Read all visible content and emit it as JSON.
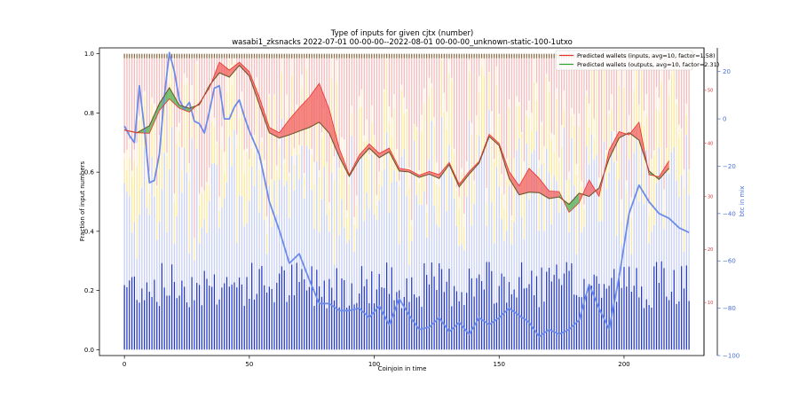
{
  "chart_data": {
    "type": "line",
    "title": "Type of inputs for given cjtx (number)",
    "subtitle": "wasabi1_zksnacks 2022-07-01 00-00-00--2022-08-01 00-00-00_unknown-static-100-1utxo",
    "xlabel": "Coinjoin in time",
    "ylabel": "Fraction of input numbers",
    "y2label": "btc in mix",
    "xlim": [
      -10,
      232
    ],
    "ylim": [
      -0.02,
      1.02
    ],
    "y2lim": [
      -100,
      30
    ],
    "y3lim": [
      0,
      58
    ],
    "x_ticks": [
      0,
      50,
      100,
      150,
      200
    ],
    "y_ticks": [
      0.0,
      0.2,
      0.4,
      0.6,
      0.8,
      1.0
    ],
    "y2_ticks": [
      -100,
      -80,
      -60,
      -40,
      -20,
      0,
      20
    ],
    "y3_ticks": [
      10,
      20,
      30,
      40,
      50
    ],
    "x_tick_labels": [
      "0",
      "50",
      "100",
      "150",
      "200"
    ],
    "y_tick_labels": [
      "0.0",
      "0.2",
      "0.4",
      "0.6",
      "0.8",
      "1.0"
    ],
    "y2_tick_labels": [
      "−100",
      "−80",
      "−60",
      "−40",
      "−20",
      "0",
      "20"
    ],
    "y3_tick_labels": [
      "10",
      "20",
      "30",
      "40",
      "50"
    ],
    "legend_position": "top-right",
    "grid": false,
    "n_coinjoins": 227,
    "colors": {
      "inputs_line": "#e8332a",
      "outputs_line": "#2ca02c",
      "blue_line": "#6c8cea",
      "dark_bar": "#2035cc",
      "light_bar": "#c6cef5",
      "yellow_bar": "#fbe79a",
      "cream_bar": "#fdebd3",
      "pink_bar": "#f5b9b9",
      "brown_bar": "#8a6a45",
      "red_fill": "#f26060",
      "green_fill": "#4caf50"
    },
    "series": [
      {
        "name": "Predicted wallets (inputs, avg=10, factor=1.58)",
        "axis": "right-red",
        "x": [
          0,
          5,
          10,
          14,
          18,
          22,
          26,
          30,
          34,
          38,
          42,
          46,
          50,
          54,
          58,
          62,
          66,
          70,
          74,
          78,
          82,
          86,
          90,
          94,
          98,
          102,
          106,
          110,
          114,
          118,
          122,
          126,
          130,
          134,
          138,
          142,
          146,
          150,
          154,
          158,
          162,
          166,
          170,
          174,
          178,
          182,
          186,
          190,
          194,
          198,
          202,
          206,
          210,
          214,
          218
        ],
        "values": [
          42.5,
          42.0,
          41.9,
          46.2,
          48.4,
          46.6,
          45.9,
          47.6,
          50.4,
          55.3,
          53.8,
          55.3,
          53.5,
          48.7,
          43.0,
          42.0,
          44.5,
          46.7,
          48.7,
          51.3,
          46.4,
          39.1,
          34.1,
          37.8,
          39.9,
          38.1,
          39.1,
          35.3,
          35.0,
          34.0,
          34.7,
          34.1,
          36.4,
          32.3,
          34.7,
          36.6,
          41.7,
          40.0,
          34.7,
          32.0,
          35.3,
          33.4,
          31.0,
          30.9,
          27.0,
          28.8,
          33.1,
          30.0,
          38.7,
          42.2,
          41.6,
          44.0,
          34.1,
          33.7,
          36.7
        ]
      },
      {
        "name": "Predicted wallets (outputs, avg=10, factor=2.31)",
        "axis": "right-red",
        "x": [
          0,
          5,
          10,
          14,
          18,
          22,
          26,
          30,
          34,
          38,
          42,
          46,
          50,
          54,
          58,
          62,
          66,
          70,
          74,
          78,
          82,
          86,
          90,
          94,
          98,
          102,
          106,
          110,
          114,
          118,
          122,
          126,
          130,
          134,
          138,
          142,
          146,
          150,
          154,
          158,
          162,
          166,
          170,
          174,
          178,
          182,
          186,
          190,
          194,
          198,
          202,
          206,
          210,
          214,
          218
        ],
        "values": [
          42.5,
          42.0,
          43.3,
          47.5,
          50.5,
          47.2,
          46.6,
          47.3,
          50.9,
          53.3,
          52.5,
          54.7,
          52.7,
          47.3,
          42.0,
          41.0,
          41.6,
          42.3,
          43.0,
          44.0,
          41.9,
          37.5,
          33.8,
          37.0,
          39.1,
          37.3,
          38.4,
          34.8,
          34.6,
          33.6,
          34.2,
          33.4,
          36.0,
          31.8,
          34.2,
          36.3,
          41.3,
          39.6,
          33.4,
          30.3,
          30.8,
          30.7,
          29.6,
          29.9,
          28.5,
          30.6,
          30.0,
          31.6,
          37.1,
          41.0,
          42.0,
          40.6,
          34.8,
          33.2,
          35.3
        ]
      },
      {
        "name": "btc in mix",
        "axis": "right-blue",
        "x": [
          0,
          2,
          4,
          6,
          8,
          10,
          12,
          14,
          16,
          18,
          20,
          22,
          24,
          26,
          28,
          30,
          32,
          34,
          36,
          38,
          40,
          42,
          44,
          46,
          48,
          50,
          54,
          58,
          62,
          66,
          70,
          74,
          78,
          82,
          86,
          90,
          94,
          98,
          102,
          106,
          110,
          114,
          118,
          122,
          126,
          130,
          134,
          138,
          142,
          146,
          150,
          154,
          158,
          162,
          166,
          170,
          174,
          178,
          182,
          186,
          190,
          194,
          198,
          202,
          206,
          210,
          214,
          218,
          222,
          226
        ],
        "values": [
          -3,
          -7,
          -10,
          14,
          -4,
          -27,
          -26,
          -15,
          10,
          28,
          20,
          8,
          4,
          7,
          -1,
          -2,
          -6,
          3,
          13,
          14,
          0,
          0,
          5,
          8,
          1,
          -5,
          -15,
          -35,
          -47,
          -61,
          -57,
          -68,
          -78,
          -78,
          -81,
          -81,
          -80,
          -84,
          -79,
          -87,
          -76,
          -83,
          -89,
          -88,
          -84,
          -90,
          -86,
          -91,
          -84,
          -87,
          -84,
          -80,
          -83,
          -86,
          -92,
          -89,
          -91,
          -89,
          -85,
          -70,
          -80,
          -89,
          -67,
          -40,
          -28,
          -35,
          -40,
          -42,
          -46,
          -48
        ]
      }
    ]
  }
}
